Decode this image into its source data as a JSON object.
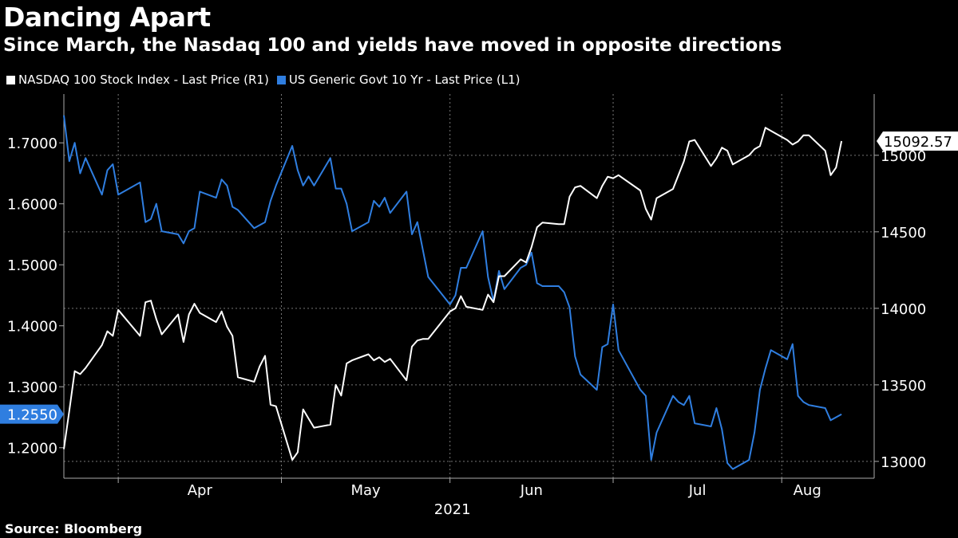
{
  "title": "Dancing Apart",
  "subtitle": "Since March, the Nasdaq 100 and yields have moved in opposite directions",
  "source": "Source: Bloomberg",
  "colors": {
    "nasdaq": "#ffffff",
    "yield": "#2f7ee0",
    "background": "#000000"
  },
  "chart_data": {
    "type": "line",
    "title": "Dancing Apart",
    "subtitle": "Since March, the Nasdaq 100 and yields have moved in opposite directions",
    "legend": [
      "NASDAQ 100 Stock Index - Last Price (R1)",
      "US Generic Govt 10 Yr - Last Price (L1)"
    ],
    "legend_position": "top-left",
    "grid": true,
    "x_axis": {
      "start": "2021-03-22",
      "end": "2021-08-18",
      "tick_labels": [
        {
          "label": "Apr",
          "date": "2021-04-01"
        },
        {
          "label": "May",
          "date": "2021-05-01"
        },
        {
          "label": "Jun",
          "date": "2021-06-01"
        },
        {
          "label": "Jul",
          "date": "2021-07-01"
        },
        {
          "label": "Aug",
          "date": "2021-08-01"
        }
      ],
      "year_label": "2021"
    },
    "left_axis": {
      "ticks": [
        "1.2000",
        "1.3000",
        "1.4000",
        "1.5000",
        "1.6000",
        "1.7000"
      ],
      "range": [
        1.15,
        1.78
      ]
    },
    "right_axis": {
      "ticks": [
        "13000",
        "13500",
        "14000",
        "14500",
        "15000"
      ],
      "range": [
        12890,
        15400
      ]
    },
    "series": [
      {
        "name": "NASDAQ 100 Stock Index - Last Price (R1)",
        "axis": "right",
        "last_label": "15092.57",
        "values": [
          [
            "2021-03-22",
            13080
          ],
          [
            "2021-03-23",
            13330
          ],
          [
            "2021-03-24",
            13590
          ],
          [
            "2021-03-25",
            13570
          ],
          [
            "2021-03-26",
            13610
          ],
          [
            "2021-03-29",
            13760
          ],
          [
            "2021-03-30",
            13850
          ],
          [
            "2021-03-31",
            13820
          ],
          [
            "2021-04-01",
            13990
          ],
          [
            "2021-04-05",
            13820
          ],
          [
            "2021-04-06",
            14040
          ],
          [
            "2021-04-07",
            14050
          ],
          [
            "2021-04-08",
            13930
          ],
          [
            "2021-04-09",
            13830
          ],
          [
            "2021-04-12",
            13960
          ],
          [
            "2021-04-13",
            13780
          ],
          [
            "2021-04-14",
            13960
          ],
          [
            "2021-04-15",
            14030
          ],
          [
            "2021-04-16",
            13970
          ],
          [
            "2021-04-19",
            13910
          ],
          [
            "2021-04-20",
            13980
          ],
          [
            "2021-04-21",
            13880
          ],
          [
            "2021-04-22",
            13820
          ],
          [
            "2021-04-23",
            13550
          ],
          [
            "2021-04-26",
            13520
          ],
          [
            "2021-04-27",
            13620
          ],
          [
            "2021-04-28",
            13690
          ],
          [
            "2021-04-29",
            13370
          ],
          [
            "2021-04-30",
            13360
          ],
          [
            "2021-05-03",
            13010
          ],
          [
            "2021-05-04",
            13060
          ],
          [
            "2021-05-05",
            13340
          ],
          [
            "2021-05-06",
            13280
          ],
          [
            "2021-05-07",
            13220
          ],
          [
            "2021-05-10",
            13240
          ],
          [
            "2021-05-11",
            13500
          ],
          [
            "2021-05-12",
            13430
          ],
          [
            "2021-05-13",
            13640
          ],
          [
            "2021-05-14",
            13660
          ],
          [
            "2021-05-17",
            13700
          ],
          [
            "2021-05-18",
            13660
          ],
          [
            "2021-05-19",
            13680
          ],
          [
            "2021-05-20",
            13650
          ],
          [
            "2021-05-21",
            13670
          ],
          [
            "2021-05-24",
            13530
          ],
          [
            "2021-05-25",
            13750
          ],
          [
            "2021-05-26",
            13790
          ],
          [
            "2021-05-27",
            13800
          ],
          [
            "2021-05-28",
            13800
          ],
          [
            "2021-06-01",
            13980
          ],
          [
            "2021-06-02",
            14000
          ],
          [
            "2021-06-03",
            14080
          ],
          [
            "2021-06-04",
            14010
          ],
          [
            "2021-06-07",
            13990
          ],
          [
            "2021-06-08",
            14090
          ],
          [
            "2021-06-09",
            14040
          ],
          [
            "2021-06-10",
            14210
          ],
          [
            "2021-06-11",
            14210
          ],
          [
            "2021-06-14",
            14320
          ],
          [
            "2021-06-15",
            14300
          ],
          [
            "2021-06-16",
            14400
          ],
          [
            "2021-06-17",
            14530
          ],
          [
            "2021-06-18",
            14560
          ],
          [
            "2021-06-21",
            14550
          ],
          [
            "2021-06-22",
            14550
          ],
          [
            "2021-06-23",
            14730
          ],
          [
            "2021-06-24",
            14790
          ],
          [
            "2021-06-25",
            14800
          ],
          [
            "2021-06-28",
            14720
          ],
          [
            "2021-06-29",
            14800
          ],
          [
            "2021-06-30",
            14860
          ],
          [
            "2021-07-01",
            14850
          ],
          [
            "2021-07-02",
            14870
          ],
          [
            "2021-07-06",
            14770
          ],
          [
            "2021-07-07",
            14650
          ],
          [
            "2021-07-08",
            14580
          ],
          [
            "2021-07-09",
            14720
          ],
          [
            "2021-07-12",
            14780
          ],
          [
            "2021-07-13",
            14870
          ],
          [
            "2021-07-14",
            14960
          ],
          [
            "2021-07-15",
            15090
          ],
          [
            "2021-07-16",
            15100
          ],
          [
            "2021-07-19",
            14930
          ],
          [
            "2021-07-20",
            14980
          ],
          [
            "2021-07-21",
            15050
          ],
          [
            "2021-07-22",
            15030
          ],
          [
            "2021-07-23",
            14940
          ],
          [
            "2021-07-26",
            15000
          ],
          [
            "2021-07-27",
            15040
          ],
          [
            "2021-07-28",
            15060
          ],
          [
            "2021-07-29",
            15180
          ],
          [
            "2021-07-30",
            15160
          ],
          [
            "2021-08-02",
            15100
          ],
          [
            "2021-08-03",
            15070
          ],
          [
            "2021-08-04",
            15090
          ],
          [
            "2021-08-05",
            15130
          ],
          [
            "2021-08-06",
            15130
          ],
          [
            "2021-08-09",
            15030
          ],
          [
            "2021-08-10",
            14870
          ],
          [
            "2021-08-11",
            14920
          ],
          [
            "2021-08-12",
            15092.57
          ]
        ]
      },
      {
        "name": "US Generic Govt 10 Yr - Last Price (L1)",
        "axis": "left",
        "last_label": "1.2550",
        "values": [
          [
            "2021-03-22",
            1.745
          ],
          [
            "2021-03-23",
            1.67
          ],
          [
            "2021-03-24",
            1.7
          ],
          [
            "2021-03-25",
            1.65
          ],
          [
            "2021-03-26",
            1.675
          ],
          [
            "2021-03-29",
            1.615
          ],
          [
            "2021-03-30",
            1.655
          ],
          [
            "2021-03-31",
            1.665
          ],
          [
            "2021-04-01",
            1.615
          ],
          [
            "2021-04-05",
            1.635
          ],
          [
            "2021-04-06",
            1.57
          ],
          [
            "2021-04-07",
            1.575
          ],
          [
            "2021-04-08",
            1.6
          ],
          [
            "2021-04-09",
            1.555
          ],
          [
            "2021-04-12",
            1.55
          ],
          [
            "2021-04-13",
            1.535
          ],
          [
            "2021-04-14",
            1.555
          ],
          [
            "2021-04-15",
            1.56
          ],
          [
            "2021-04-16",
            1.62
          ],
          [
            "2021-04-19",
            1.61
          ],
          [
            "2021-04-20",
            1.64
          ],
          [
            "2021-04-21",
            1.63
          ],
          [
            "2021-04-22",
            1.595
          ],
          [
            "2021-04-23",
            1.59
          ],
          [
            "2021-04-26",
            1.56
          ],
          [
            "2021-04-27",
            1.565
          ],
          [
            "2021-04-28",
            1.57
          ],
          [
            "2021-04-29",
            1.605
          ],
          [
            "2021-04-30",
            1.63
          ],
          [
            "2021-05-03",
            1.695
          ],
          [
            "2021-05-04",
            1.655
          ],
          [
            "2021-05-05",
            1.63
          ],
          [
            "2021-05-06",
            1.645
          ],
          [
            "2021-05-07",
            1.63
          ],
          [
            "2021-05-10",
            1.675
          ],
          [
            "2021-05-11",
            1.625
          ],
          [
            "2021-05-12",
            1.625
          ],
          [
            "2021-05-13",
            1.6
          ],
          [
            "2021-05-14",
            1.555
          ],
          [
            "2021-05-17",
            1.57
          ],
          [
            "2021-05-18",
            1.605
          ],
          [
            "2021-05-19",
            1.595
          ],
          [
            "2021-05-20",
            1.61
          ],
          [
            "2021-05-21",
            1.585
          ],
          [
            "2021-05-24",
            1.62
          ],
          [
            "2021-05-25",
            1.55
          ],
          [
            "2021-05-26",
            1.57
          ],
          [
            "2021-05-27",
            1.525
          ],
          [
            "2021-05-28",
            1.48
          ],
          [
            "2021-06-01",
            1.435
          ],
          [
            "2021-06-02",
            1.45
          ],
          [
            "2021-06-03",
            1.495
          ],
          [
            "2021-06-04",
            1.495
          ],
          [
            "2021-06-07",
            1.555
          ],
          [
            "2021-06-08",
            1.48
          ],
          [
            "2021-06-09",
            1.44
          ],
          [
            "2021-06-10",
            1.49
          ],
          [
            "2021-06-11",
            1.46
          ],
          [
            "2021-06-14",
            1.495
          ],
          [
            "2021-06-15",
            1.5
          ],
          [
            "2021-06-16",
            1.52
          ],
          [
            "2021-06-17",
            1.47
          ],
          [
            "2021-06-18",
            1.465
          ],
          [
            "2021-06-21",
            1.465
          ],
          [
            "2021-06-22",
            1.455
          ],
          [
            "2021-06-23",
            1.43
          ],
          [
            "2021-06-24",
            1.35
          ],
          [
            "2021-06-25",
            1.32
          ],
          [
            "2021-06-28",
            1.295
          ],
          [
            "2021-06-29",
            1.365
          ],
          [
            "2021-06-30",
            1.37
          ],
          [
            "2021-07-01",
            1.435
          ],
          [
            "2021-07-02",
            1.36
          ],
          [
            "2021-07-06",
            1.295
          ],
          [
            "2021-07-07",
            1.285
          ],
          [
            "2021-07-08",
            1.18
          ],
          [
            "2021-07-09",
            1.225
          ],
          [
            "2021-07-12",
            1.285
          ],
          [
            "2021-07-13",
            1.275
          ],
          [
            "2021-07-14",
            1.27
          ],
          [
            "2021-07-15",
            1.285
          ],
          [
            "2021-07-16",
            1.24
          ],
          [
            "2021-07-19",
            1.235
          ],
          [
            "2021-07-20",
            1.265
          ],
          [
            "2021-07-21",
            1.23
          ],
          [
            "2021-07-22",
            1.175
          ],
          [
            "2021-07-23",
            1.165
          ],
          [
            "2021-07-26",
            1.18
          ],
          [
            "2021-07-27",
            1.225
          ],
          [
            "2021-07-28",
            1.295
          ],
          [
            "2021-07-29",
            1.33
          ],
          [
            "2021-07-30",
            1.36
          ],
          [
            "2021-08-02",
            1.345
          ],
          [
            "2021-08-03",
            1.37
          ],
          [
            "2021-08-04",
            1.285
          ],
          [
            "2021-08-05",
            1.275
          ],
          [
            "2021-08-06",
            1.27
          ],
          [
            "2021-08-09",
            1.265
          ],
          [
            "2021-08-10",
            1.245
          ],
          [
            "2021-08-11",
            1.25
          ],
          [
            "2021-08-12",
            1.255
          ]
        ]
      }
    ]
  }
}
